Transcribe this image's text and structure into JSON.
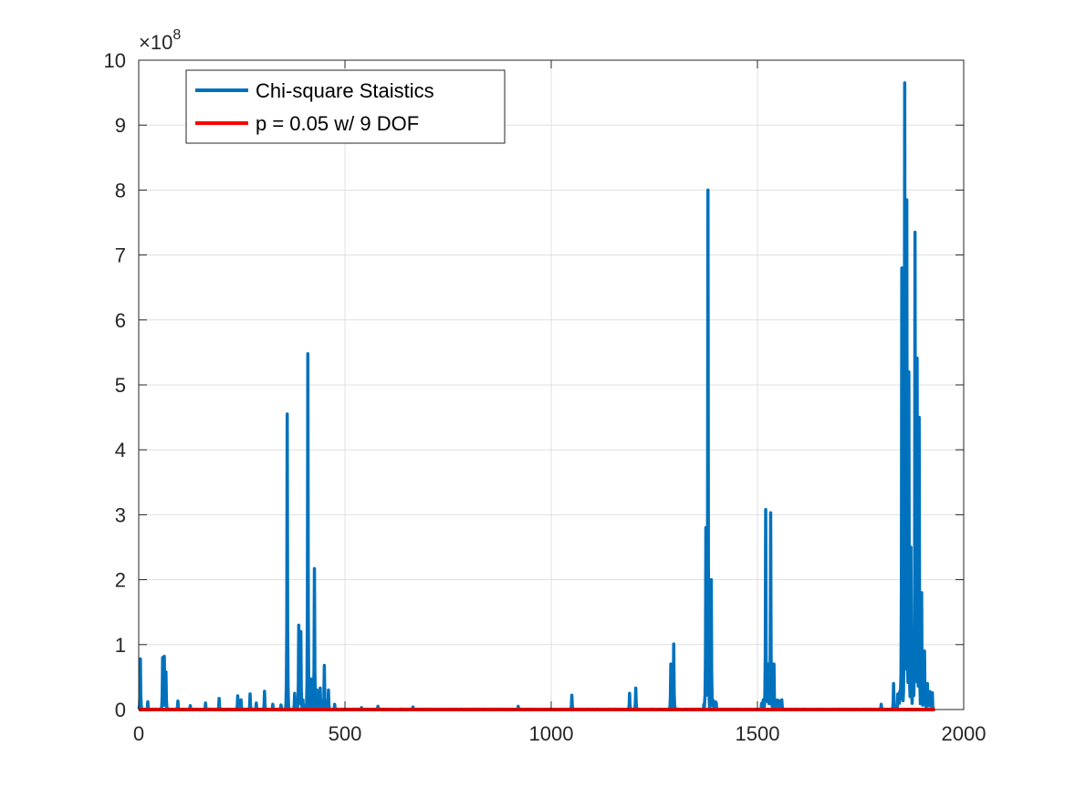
{
  "chart_data": {
    "type": "line",
    "title": "",
    "xlabel": "",
    "ylabel": "",
    "xlim": [
      0,
      2000
    ],
    "ylim": [
      0,
      1000000000
    ],
    "x_ticks": [
      0,
      500,
      1000,
      1500,
      2000
    ],
    "x_tick_labels": [
      "0",
      "500",
      "1000",
      "1500",
      "2000"
    ],
    "y_ticks": [
      0,
      100000000,
      200000000,
      300000000,
      400000000,
      500000000,
      600000000,
      700000000,
      800000000,
      900000000,
      1000000000
    ],
    "y_tick_labels": [
      "0",
      "1",
      "2",
      "3",
      "4",
      "5",
      "6",
      "7",
      "8",
      "9",
      "10"
    ],
    "y_exponent": {
      "base": "×10",
      "power": "8"
    },
    "grid": true,
    "legend": {
      "placement": "top-left"
    },
    "series": [
      {
        "name": "Chi-square Staistics",
        "color": "#0072BD",
        "peaks": [
          [
            4,
            78000000
          ],
          [
            22,
            12000000
          ],
          [
            58,
            80000000
          ],
          [
            62,
            82000000
          ],
          [
            66,
            58000000
          ],
          [
            95,
            13000000
          ],
          [
            125,
            6000000
          ],
          [
            162,
            10000000
          ],
          [
            195,
            17000000
          ],
          [
            240,
            21000000
          ],
          [
            248,
            15000000
          ],
          [
            270,
            24000000
          ],
          [
            285,
            10000000
          ],
          [
            305,
            28000000
          ],
          [
            325,
            8000000
          ],
          [
            345,
            7000000
          ],
          [
            360,
            455000000
          ],
          [
            378,
            25000000
          ],
          [
            388,
            130000000
          ],
          [
            393,
            120000000
          ],
          [
            398,
            15000000
          ],
          [
            410,
            548000000
          ],
          [
            418,
            47000000
          ],
          [
            426,
            217000000
          ],
          [
            432,
            30000000
          ],
          [
            440,
            33000000
          ],
          [
            450,
            68000000
          ],
          [
            460,
            30000000
          ],
          [
            475,
            8000000
          ],
          [
            540,
            3000000
          ],
          [
            580,
            5000000
          ],
          [
            665,
            4000000
          ],
          [
            920,
            5000000
          ],
          [
            1050,
            22000000
          ],
          [
            1190,
            25000000
          ],
          [
            1205,
            33000000
          ],
          [
            1290,
            70000000
          ],
          [
            1297,
            101000000
          ],
          [
            1375,
            280000000
          ],
          [
            1380,
            800000000
          ],
          [
            1388,
            200000000
          ],
          [
            1520,
            308000000
          ],
          [
            1525,
            70000000
          ],
          [
            1532,
            303000000
          ],
          [
            1540,
            70000000
          ],
          [
            1800,
            8000000
          ],
          [
            1830,
            40000000
          ],
          [
            1850,
            680000000
          ],
          [
            1857,
            965000000
          ],
          [
            1862,
            785000000
          ],
          [
            1867,
            520000000
          ],
          [
            1872,
            250000000
          ],
          [
            1877,
            120000000
          ],
          [
            1882,
            735000000
          ],
          [
            1887,
            541000000
          ],
          [
            1892,
            450000000
          ],
          [
            1898,
            180000000
          ],
          [
            1905,
            90000000
          ],
          [
            1912,
            40000000
          ],
          [
            1920,
            20000000
          ]
        ],
        "clusters": [
          [
            1370,
            1400,
            15000000
          ],
          [
            1510,
            1560,
            15000000
          ],
          [
            1840,
            1925,
            30000000
          ]
        ]
      },
      {
        "name": "p = 0.05 w/ 9 DOF",
        "color": "#FF0000",
        "x": [
          0,
          1930
        ],
        "y": [
          16.919,
          16.919
        ]
      }
    ]
  }
}
